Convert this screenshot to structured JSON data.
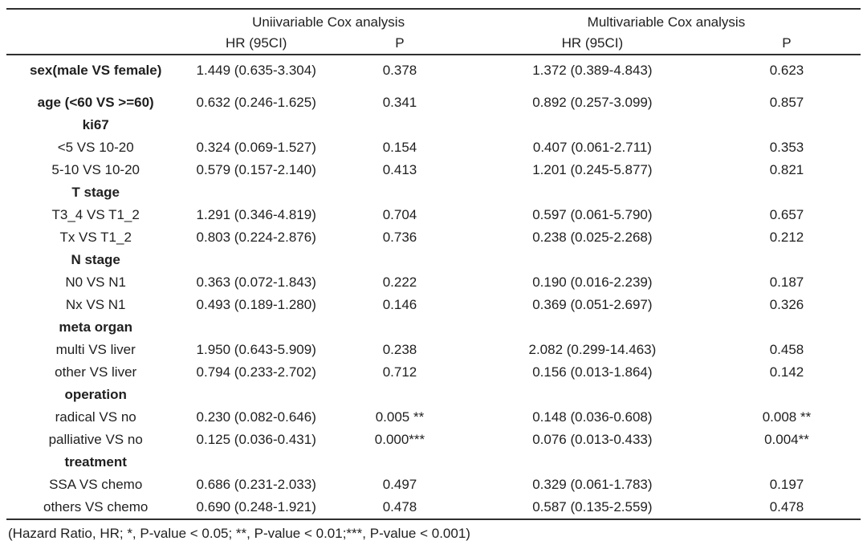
{
  "table": {
    "group_headers": [
      "Uniivariable Cox analysis",
      "Multivariable Cox analysis"
    ],
    "sub_headers": [
      "HR (95CI)",
      "P",
      "HR (95CI)",
      "P"
    ],
    "rows": [
      {
        "label": "sex(male VS female)",
        "bold": true,
        "gap_after": true,
        "uni_hr": "1.449 (0.635-3.304)",
        "uni_p": "0.378",
        "multi_hr": "1.372 (0.389-4.843)",
        "multi_p": "0.623"
      },
      {
        "label": "age (<60 VS >=60)",
        "bold": true,
        "uni_hr": "0.632 (0.246-1.625)",
        "uni_p": "0.341",
        "multi_hr": "0.892 (0.257-3.099)",
        "multi_p": "0.857"
      },
      {
        "label": "ki67",
        "section": true
      },
      {
        "label": "<5 VS 10-20",
        "uni_hr": "0.324 (0.069-1.527)",
        "uni_p": "0.154",
        "multi_hr": "0.407 (0.061-2.711)",
        "multi_p": "0.353"
      },
      {
        "label": "5-10 VS 10-20",
        "uni_hr": "0.579 (0.157-2.140)",
        "uni_p": "0.413",
        "multi_hr": "1.201 (0.245-5.877)",
        "multi_p": "0.821"
      },
      {
        "label": "T stage",
        "section": true
      },
      {
        "label": "T3_4 VS T1_2",
        "uni_hr": "1.291 (0.346-4.819)",
        "uni_p": "0.704",
        "multi_hr": "0.597 (0.061-5.790)",
        "multi_p": "0.657"
      },
      {
        "label": "Tx VS T1_2",
        "uni_hr": "0.803 (0.224-2.876)",
        "uni_p": "0.736",
        "multi_hr": "0.238 (0.025-2.268)",
        "multi_p": "0.212"
      },
      {
        "label": "N stage",
        "section": true
      },
      {
        "label": "N0 VS N1",
        "uni_hr": "0.363 (0.072-1.843)",
        "uni_p": "0.222",
        "multi_hr": "0.190 (0.016-2.239)",
        "multi_p": "0.187"
      },
      {
        "label": "Nx VS N1",
        "uni_hr": "0.493 (0.189-1.280)",
        "uni_p": "0.146",
        "multi_hr": "0.369 (0.051-2.697)",
        "multi_p": "0.326"
      },
      {
        "label": "meta organ",
        "section": true
      },
      {
        "label": "multi VS liver",
        "uni_hr": "1.950 (0.643-5.909)",
        "uni_p": "0.238",
        "multi_hr": "2.082 (0.299-14.463)",
        "multi_p": "0.458"
      },
      {
        "label": "other VS liver",
        "uni_hr": "0.794 (0.233-2.702)",
        "uni_p": "0.712",
        "multi_hr": "0.156 (0.013-1.864)",
        "multi_p": "0.142"
      },
      {
        "label": "operation",
        "section": true
      },
      {
        "label": "radical VS no",
        "uni_hr": "0.230 (0.082-0.646)",
        "uni_p": "0.005 **",
        "multi_hr": "0.148 (0.036-0.608)",
        "multi_p": "0.008 **"
      },
      {
        "label": "palliative VS no",
        "uni_hr": "0.125 (0.036-0.431)",
        "uni_p": "0.000***",
        "multi_hr": "0.076 (0.013-0.433)",
        "multi_p": "0.004**"
      },
      {
        "label": "treatment",
        "section": true
      },
      {
        "label": "SSA VS chemo",
        "uni_hr": "0.686 (0.231-2.033)",
        "uni_p": "0.497",
        "multi_hr": "0.329 (0.061-1.783)",
        "multi_p": "0.197"
      },
      {
        "label": "others VS chemo",
        "uni_hr": "0.690 (0.248-1.921)",
        "uni_p": "0.478",
        "multi_hr": "0.587 (0.135-2.559)",
        "multi_p": "0.478"
      }
    ],
    "footnote": "(Hazard Ratio, HR; *, P-value < 0.05; **, P-value < 0.01;***, P-value < 0.001)"
  }
}
